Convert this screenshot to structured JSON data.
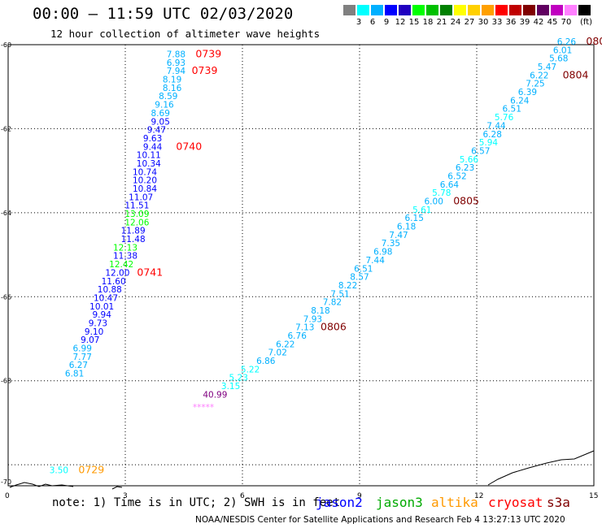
{
  "header": {
    "title": "00:00 – 11:59 UTC 02/03/2020",
    "subtitle": "12 hour collection of altimeter wave heights"
  },
  "legend": {
    "unit": "(ft)",
    "colors": [
      "#808080",
      "#00ffff",
      "#00b0ff",
      "#0000ff",
      "#2000c0",
      "#00ff00",
      "#00c000",
      "#008000",
      "#ffff00",
      "#ffd000",
      "#ffa000",
      "#ff0000",
      "#c00000",
      "#800000",
      "#600060",
      "#c000c0",
      "#ff80ff",
      "#000000"
    ],
    "labels": [
      "3",
      "6",
      "9",
      "12",
      "15",
      "18",
      "21",
      "24",
      "27",
      "30",
      "33",
      "36",
      "39",
      "42",
      "45",
      "70"
    ]
  },
  "axes": {
    "x_ticks": [
      "0",
      "3",
      "6",
      "9",
      "12",
      "15"
    ],
    "y_ticks": [
      "-60",
      "-62",
      "-64",
      "-66",
      "-68",
      "-70"
    ]
  },
  "chart_data": {
    "type": "scatter",
    "xlim": [
      0,
      15
    ],
    "ylim": [
      -70.5,
      -60
    ],
    "tracks": [
      {
        "satellite": "jason2",
        "points": [
          {
            "x": 4.3,
            "y": -60.3,
            "v": "7.88",
            "c": "#00b0ff"
          },
          {
            "x": 4.3,
            "y": -60.5,
            "v": "6.93",
            "c": "#00b0ff"
          },
          {
            "x": 4.3,
            "y": -60.7,
            "v": "7.94",
            "c": "#00b0ff"
          },
          {
            "x": 4.2,
            "y": -60.9,
            "v": "8.19",
            "c": "#00b0ff"
          },
          {
            "x": 4.2,
            "y": -61.1,
            "v": "8.16",
            "c": "#00b0ff"
          },
          {
            "x": 4.1,
            "y": -61.3,
            "v": "8.59",
            "c": "#00b0ff"
          },
          {
            "x": 4.0,
            "y": -61.5,
            "v": "9.16",
            "c": "#00b0ff"
          },
          {
            "x": 3.9,
            "y": -61.7,
            "v": "8.69",
            "c": "#00b0ff"
          },
          {
            "x": 3.9,
            "y": -61.9,
            "v": "9.05",
            "c": "#0000ff"
          },
          {
            "x": 3.8,
            "y": -62.1,
            "v": "9.47",
            "c": "#0000ff"
          },
          {
            "x": 3.7,
            "y": -62.3,
            "v": "9.63",
            "c": "#0000ff"
          },
          {
            "x": 3.7,
            "y": -62.5,
            "v": "9.44",
            "c": "#0000ff"
          },
          {
            "x": 3.6,
            "y": -62.7,
            "v": "10.11",
            "c": "#0000ff"
          },
          {
            "x": 3.6,
            "y": -62.9,
            "v": "10.34",
            "c": "#0000ff"
          },
          {
            "x": 3.5,
            "y": -63.1,
            "v": "10.74",
            "c": "#0000ff"
          },
          {
            "x": 3.5,
            "y": -63.3,
            "v": "10.20",
            "c": "#0000ff"
          },
          {
            "x": 3.5,
            "y": -63.5,
            "v": "10.84",
            "c": "#0000ff"
          },
          {
            "x": 3.4,
            "y": -63.7,
            "v": "11.07",
            "c": "#0000ff"
          },
          {
            "x": 3.3,
            "y": -63.9,
            "v": "11.51",
            "c": "#0000ff"
          },
          {
            "x": 3.3,
            "y": -64.1,
            "v": "13.09",
            "c": "#00ff00"
          },
          {
            "x": 3.3,
            "y": -64.3,
            "v": "12.06",
            "c": "#00ff00"
          },
          {
            "x": 3.2,
            "y": -64.5,
            "v": "11.89",
            "c": "#0000ff"
          },
          {
            "x": 3.2,
            "y": -64.7,
            "v": "11.48",
            "c": "#0000ff"
          },
          {
            "x": 3.0,
            "y": -64.9,
            "v": "12.13",
            "c": "#00ff00"
          },
          {
            "x": 3.0,
            "y": -65.1,
            "v": "11.38",
            "c": "#0000ff"
          },
          {
            "x": 2.9,
            "y": -65.3,
            "v": "12.42",
            "c": "#00ff00"
          },
          {
            "x": 2.8,
            "y": -65.5,
            "v": "12.00",
            "c": "#0000ff"
          },
          {
            "x": 2.7,
            "y": -65.7,
            "v": "11.60",
            "c": "#0000ff"
          },
          {
            "x": 2.6,
            "y": -65.9,
            "v": "10.88",
            "c": "#0000ff"
          },
          {
            "x": 2.5,
            "y": -66.1,
            "v": "10.47",
            "c": "#0000ff"
          },
          {
            "x": 2.4,
            "y": -66.3,
            "v": "10.01",
            "c": "#0000ff"
          },
          {
            "x": 2.4,
            "y": -66.5,
            "v": "9.94",
            "c": "#0000ff"
          },
          {
            "x": 2.3,
            "y": -66.7,
            "v": "9.73",
            "c": "#0000ff"
          },
          {
            "x": 2.2,
            "y": -66.9,
            "v": "9.10",
            "c": "#0000ff"
          },
          {
            "x": 2.1,
            "y": -67.1,
            "v": "9.07",
            "c": "#0000ff"
          },
          {
            "x": 1.9,
            "y": -67.3,
            "v": "6.99",
            "c": "#00b0ff"
          },
          {
            "x": 1.9,
            "y": -67.5,
            "v": "7.77",
            "c": "#00b0ff"
          },
          {
            "x": 1.8,
            "y": -67.7,
            "v": "6.27",
            "c": "#00b0ff"
          },
          {
            "x": 1.7,
            "y": -67.9,
            "v": "6.81",
            "c": "#00b0ff"
          }
        ]
      },
      {
        "satellite": "jason3",
        "points": [
          {
            "x": 14.3,
            "y": -60.0,
            "v": "6.26",
            "c": "#00b0ff"
          },
          {
            "x": 14.2,
            "y": -60.2,
            "v": "6.01",
            "c": "#00b0ff"
          },
          {
            "x": 14.1,
            "y": -60.4,
            "v": "5.68",
            "c": "#00b0ff"
          },
          {
            "x": 13.8,
            "y": -60.6,
            "v": "5.47",
            "c": "#00b0ff"
          },
          {
            "x": 13.6,
            "y": -60.8,
            "v": "6.22",
            "c": "#00b0ff"
          },
          {
            "x": 13.5,
            "y": -61.0,
            "v": "7.25",
            "c": "#00b0ff"
          },
          {
            "x": 13.3,
            "y": -61.2,
            "v": "6.39",
            "c": "#00b0ff"
          },
          {
            "x": 13.1,
            "y": -61.4,
            "v": "6.24",
            "c": "#00b0ff"
          },
          {
            "x": 12.9,
            "y": -61.6,
            "v": "6.51",
            "c": "#00b0ff"
          },
          {
            "x": 12.7,
            "y": -61.8,
            "v": "5.76",
            "c": "#00ffff"
          },
          {
            "x": 12.5,
            "y": -62.0,
            "v": "7.44",
            "c": "#00b0ff"
          },
          {
            "x": 12.4,
            "y": -62.2,
            "v": "6.28",
            "c": "#00b0ff"
          },
          {
            "x": 12.3,
            "y": -62.4,
            "v": "5.94",
            "c": "#00ffff"
          },
          {
            "x": 12.1,
            "y": -62.6,
            "v": "6.57",
            "c": "#00b0ff"
          },
          {
            "x": 11.8,
            "y": -62.8,
            "v": "5.66",
            "c": "#00ffff"
          },
          {
            "x": 11.7,
            "y": -63.0,
            "v": "6.23",
            "c": "#00b0ff"
          },
          {
            "x": 11.5,
            "y": -63.2,
            "v": "6.52",
            "c": "#00b0ff"
          },
          {
            "x": 11.3,
            "y": -63.4,
            "v": "6.64",
            "c": "#00b0ff"
          },
          {
            "x": 11.1,
            "y": -63.6,
            "v": "5.78",
            "c": "#00ffff"
          },
          {
            "x": 10.9,
            "y": -63.8,
            "v": "6.00",
            "c": "#00b0ff"
          },
          {
            "x": 10.6,
            "y": -64.0,
            "v": "5.61",
            "c": "#00ffff"
          },
          {
            "x": 10.4,
            "y": -64.2,
            "v": "6.15",
            "c": "#00b0ff"
          },
          {
            "x": 10.2,
            "y": -64.4,
            "v": "6.18",
            "c": "#00b0ff"
          },
          {
            "x": 10.0,
            "y": -64.6,
            "v": "7.47",
            "c": "#00b0ff"
          },
          {
            "x": 9.8,
            "y": -64.8,
            "v": "7.35",
            "c": "#00b0ff"
          },
          {
            "x": 9.6,
            "y": -65.0,
            "v": "6.98",
            "c": "#00b0ff"
          },
          {
            "x": 9.4,
            "y": -65.2,
            "v": "7.44",
            "c": "#00b0ff"
          },
          {
            "x": 9.1,
            "y": -65.4,
            "v": "6.51",
            "c": "#00b0ff"
          },
          {
            "x": 9.0,
            "y": -65.6,
            "v": "8.57",
            "c": "#00b0ff"
          },
          {
            "x": 8.7,
            "y": -65.8,
            "v": "8.22",
            "c": "#00b0ff"
          },
          {
            "x": 8.5,
            "y": -66.0,
            "v": "7.51",
            "c": "#00b0ff"
          },
          {
            "x": 8.3,
            "y": -66.2,
            "v": "7.82",
            "c": "#00b0ff"
          },
          {
            "x": 8.0,
            "y": -66.4,
            "v": "8.18",
            "c": "#00b0ff"
          },
          {
            "x": 7.8,
            "y": -66.6,
            "v": "7.93",
            "c": "#00b0ff"
          },
          {
            "x": 7.6,
            "y": -66.8,
            "v": "7.13",
            "c": "#00b0ff"
          },
          {
            "x": 7.4,
            "y": -67.0,
            "v": "6.76",
            "c": "#00b0ff"
          },
          {
            "x": 7.1,
            "y": -67.2,
            "v": "6.22",
            "c": "#00b0ff"
          },
          {
            "x": 6.9,
            "y": -67.4,
            "v": "7.02",
            "c": "#00b0ff"
          },
          {
            "x": 6.6,
            "y": -67.6,
            "v": "6.86",
            "c": "#00b0ff"
          },
          {
            "x": 6.2,
            "y": -67.8,
            "v": "5.22",
            "c": "#00ffff"
          },
          {
            "x": 5.9,
            "y": -68.0,
            "v": "5.23",
            "c": "#00ffff"
          },
          {
            "x": 5.7,
            "y": -68.2,
            "v": "3.15",
            "c": "#00ffff"
          },
          {
            "x": 5.3,
            "y": -68.4,
            "v": "40.99",
            "c": "#800080"
          },
          {
            "x": 5.0,
            "y": -68.7,
            "v": "*****",
            "c": "#ff80ff"
          }
        ]
      },
      {
        "satellite": "altika",
        "points": [
          {
            "x": 1.3,
            "y": -70.2,
            "v": "3.50",
            "c": "#00ffff"
          }
        ]
      }
    ],
    "time_labels": [
      {
        "x": 4.8,
        "y": -60.3,
        "t": "0739",
        "c": "#ff0000"
      },
      {
        "x": 4.7,
        "y": -60.7,
        "t": "0739",
        "c": "#ff0000"
      },
      {
        "x": 4.3,
        "y": -62.5,
        "t": "0740",
        "c": "#ff0000"
      },
      {
        "x": 3.3,
        "y": -65.5,
        "t": "0741",
        "c": "#ff0000"
      },
      {
        "x": 1.8,
        "y": -70.2,
        "t": "0729",
        "c": "#ff9900"
      },
      {
        "x": 14.8,
        "y": -60.0,
        "t": "080",
        "c": "#800000"
      },
      {
        "x": 14.2,
        "y": -60.8,
        "t": "0804",
        "c": "#800000"
      },
      {
        "x": 11.4,
        "y": -63.8,
        "t": "0805",
        "c": "#800000"
      },
      {
        "x": 8.0,
        "y": -66.8,
        "t": "0806",
        "c": "#800000"
      }
    ]
  },
  "footer": {
    "note": "note:  1) Time is in UTC;  2) SWH is in feet",
    "satellites": [
      {
        "name": "jason2",
        "color": "#0000ff"
      },
      {
        "name": "jason3",
        "color": "#00aa00"
      },
      {
        "name": "altika",
        "color": "#ff9900"
      },
      {
        "name": "cryosat",
        "color": "#ff0000"
      },
      {
        "name": "s3a",
        "color": "#800000"
      }
    ],
    "credit": "NOAA/NESDIS Center for Satellite Applications and Research     Feb  4 13:27:13 UTC 2020"
  }
}
